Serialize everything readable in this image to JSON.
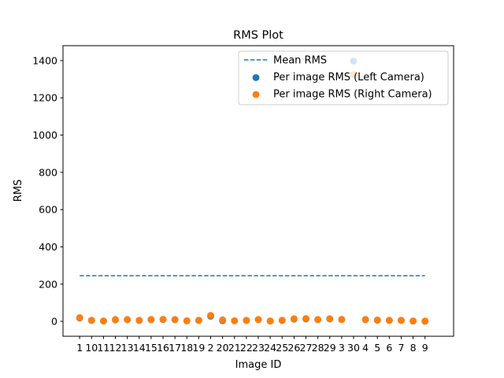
{
  "chart_data": {
    "type": "scatter",
    "title": "RMS Plot",
    "xlabel": "Image ID",
    "ylabel": "RMS",
    "categories": [
      "1",
      "10",
      "11",
      "12",
      "13",
      "14",
      "15",
      "16",
      "17",
      "18",
      "19",
      "2",
      "20",
      "21",
      "22",
      "23",
      "24",
      "25",
      "26",
      "27",
      "28",
      "29",
      "3",
      "30",
      "4",
      "5",
      "6",
      "7",
      "8",
      "9"
    ],
    "ylim": [
      -80,
      1480
    ],
    "yticks": [
      0,
      200,
      400,
      600,
      800,
      1000,
      1200,
      1400
    ],
    "mean_rms": 245,
    "series": [
      {
        "name": "Per image RMS (Left Camera)",
        "color": "#1f77b4",
        "values": [
          18,
          5,
          2,
          8,
          9,
          5,
          9,
          10,
          9,
          3,
          5,
          28,
          4,
          3,
          5,
          9,
          2,
          5,
          12,
          13,
          9,
          13,
          10,
          1397,
          9,
          6,
          5,
          5,
          2,
          1
        ]
      },
      {
        "name": "Per image RMS (Right Camera)",
        "color": "#ff7f0e",
        "values": [
          20,
          6,
          2,
          10,
          10,
          6,
          10,
          11,
          10,
          3,
          6,
          32,
          8,
          3,
          6,
          10,
          2,
          6,
          14,
          15,
          10,
          14,
          10,
          1325,
          10,
          7,
          6,
          6,
          2,
          2
        ]
      }
    ],
    "legend": {
      "placement": "upper right",
      "entries": [
        "Mean RMS",
        "Per image RMS (Left Camera)",
        "Per image RMS (Right Camera)"
      ]
    },
    "grid": false
  }
}
